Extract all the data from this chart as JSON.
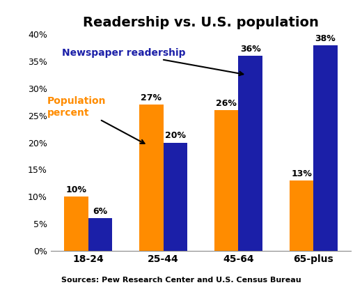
{
  "title": "Readership vs. U.S. population",
  "categories": [
    "18-24",
    "25-44",
    "45-64",
    "65-plus"
  ],
  "population_values": [
    10,
    27,
    26,
    13
  ],
  "readership_values": [
    6,
    20,
    36,
    38
  ],
  "population_color": "#FF8C00",
  "readership_color": "#1B1FA8",
  "ylim": [
    0,
    40
  ],
  "yticks": [
    0,
    5,
    10,
    15,
    20,
    25,
    30,
    35,
    40
  ],
  "ytick_labels": [
    "0%",
    "5%",
    "10%",
    "15%",
    "20%",
    "25%",
    "30%",
    "35%",
    "40%"
  ],
  "source_text": "Sources: Pew Research Center and U.S. Census Bureau",
  "annotation_population_label": "Population\npercent",
  "annotation_readership_label": "Newspaper readership",
  "bar_width": 0.32
}
